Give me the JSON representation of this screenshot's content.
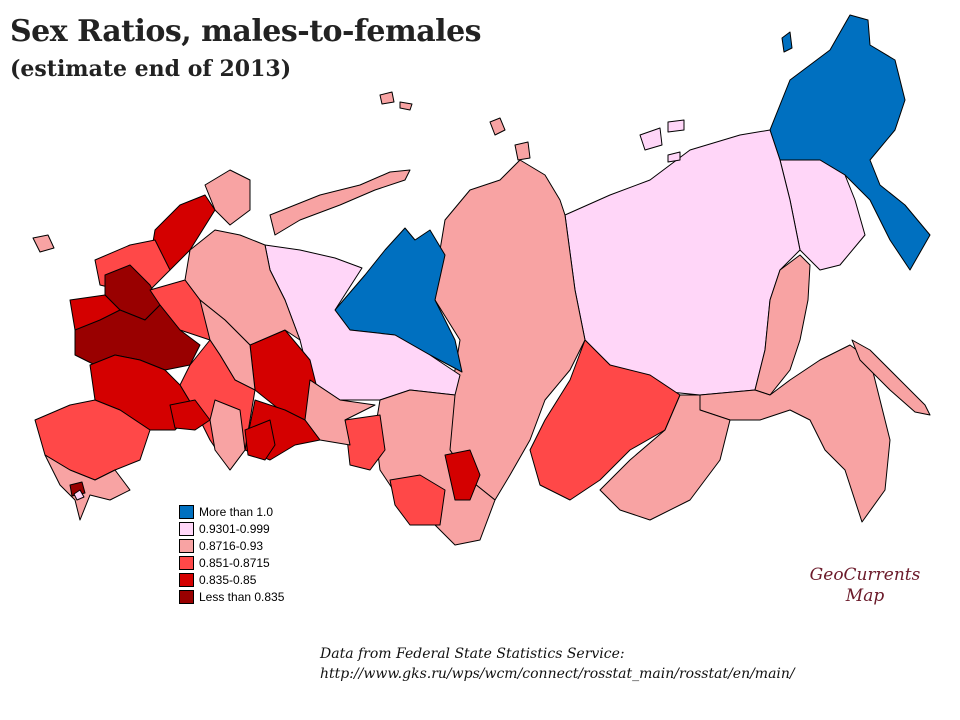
{
  "title": "Sex Ratios, males-to-females",
  "subtitle": "(estimate end of 2013)",
  "colors": {
    "more_than_1": "#0070c0",
    "c0930_0999": "#ffd6f8",
    "c0872_093": "#f8a3a3",
    "c0851_0872": "#ff4848",
    "c0835_085": "#d40000",
    "less_0835": "#990000"
  },
  "legend": [
    {
      "label": "More than 1.0",
      "color": "#0070c0"
    },
    {
      "label": "0.9301-0.999",
      "color": "#ffd6f8"
    },
    {
      "label": "0.8716-0.93",
      "color": "#f8a3a3"
    },
    {
      "label": "0.851-0.8715",
      "color": "#ff4848"
    },
    {
      "label": "0.835-0.85",
      "color": "#d40000"
    },
    {
      "label": "Less than 0.835",
      "color": "#990000"
    }
  ],
  "brand": {
    "line1": "GeoCurrents",
    "line2": "Map"
  },
  "source": {
    "line1": "Data from Federal State Statistics Service:",
    "line2": "http://www.gks.ru/wps/wcm/connect/rosstat_main/rosstat/en/main/"
  }
}
